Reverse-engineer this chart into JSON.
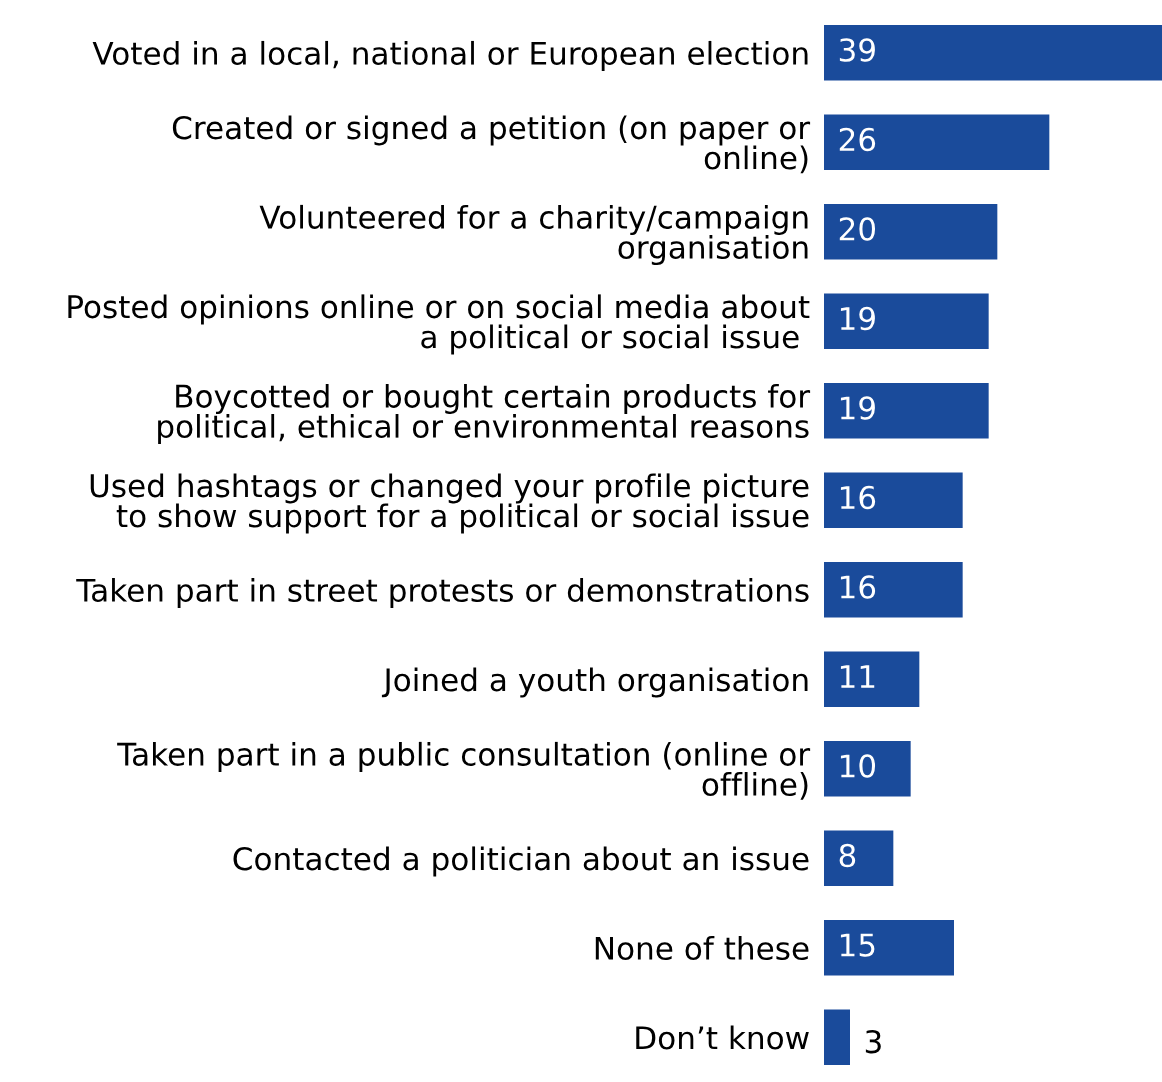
{
  "chart_data": {
    "type": "bar",
    "orientation": "horizontal",
    "data_labels": true,
    "tick_labels": "y",
    "grid": false,
    "legend": false,
    "categories": [
      "Voted in a local, national or European election",
      "Created or signed a petition (on paper or\nonline)",
      "Volunteered for a charity/campaign\norganisation",
      "Posted opinions online or on social media about\na political or social issue ",
      "Boycotted or bought certain products for\npolitical, ethical or environmental reasons",
      "Used hashtags or changed your profile picture\nto show support for a political or social issue",
      "Taken part in street protests or demonstrations",
      "Joined a youth organisation",
      "Taken part in a public consultation (online or\noffline)",
      "Contacted a politician about an issue",
      "None of these",
      "Don’t know"
    ],
    "values": [
      39,
      26,
      20,
      19,
      19,
      16,
      16,
      11,
      10,
      8,
      15,
      3
    ],
    "color": "#1a4b9b"
  }
}
